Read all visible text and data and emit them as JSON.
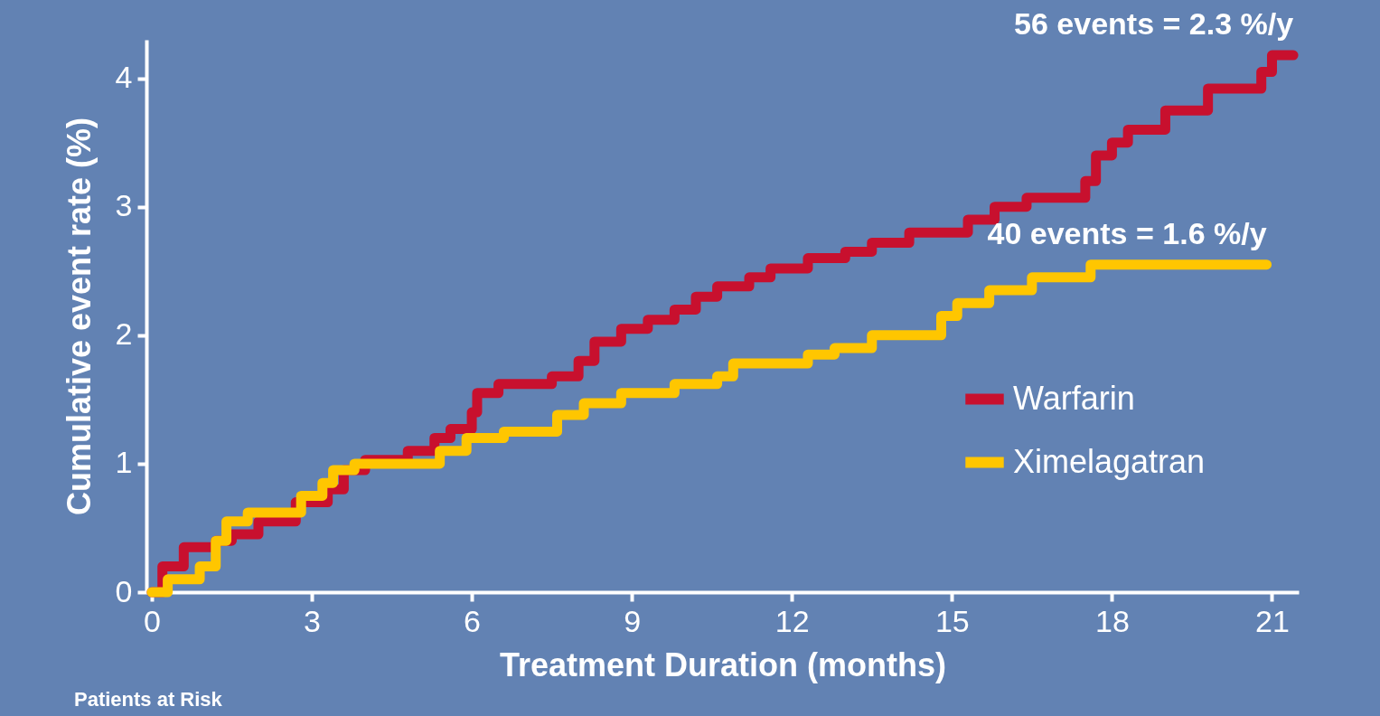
{
  "chart_data": {
    "type": "step",
    "xlabel": "Treatment Duration (months)",
    "ylabel": "Cumulative event rate (%)",
    "xlim": [
      -0.1,
      21.5
    ],
    "xticks": [
      0,
      3,
      6,
      9,
      12,
      15,
      18,
      21
    ],
    "ylim": [
      0,
      4.3
    ],
    "yticks": [
      0,
      1,
      2,
      3,
      4
    ],
    "grid": false,
    "legend": "right",
    "line_style": "solid",
    "marker": "none",
    "series": [
      {
        "name": "Warfarin",
        "color": "#c8102e",
        "x": [
          0,
          0.2,
          0.6,
          1.2,
          1.5,
          2.0,
          2.7,
          3.3,
          3.6,
          4.0,
          4.8,
          5.3,
          5.6,
          6.0,
          6.1,
          6.5,
          7.5,
          8.0,
          8.3,
          8.8,
          9.3,
          9.8,
          10.2,
          10.6,
          11.2,
          11.6,
          12.3,
          13.0,
          13.5,
          14.2,
          15.3,
          15.8,
          16.4,
          17.5,
          17.7,
          18.0,
          18.3,
          19.0,
          19.8,
          20.8,
          21.0,
          21.4
        ],
        "values": [
          0,
          0.2,
          0.35,
          0.4,
          0.45,
          0.55,
          0.7,
          0.8,
          0.95,
          1.03,
          1.1,
          1.2,
          1.27,
          1.4,
          1.55,
          1.62,
          1.68,
          1.8,
          1.95,
          2.05,
          2.12,
          2.2,
          2.3,
          2.38,
          2.45,
          2.52,
          2.6,
          2.65,
          2.72,
          2.8,
          2.9,
          3.0,
          3.07,
          3.2,
          3.4,
          3.5,
          3.6,
          3.75,
          3.92,
          4.05,
          4.18,
          4.18
        ]
      },
      {
        "name": "Ximelagatran",
        "color": "#ffc600",
        "x": [
          0,
          0.3,
          0.9,
          1.2,
          1.4,
          1.8,
          2.8,
          3.2,
          3.4,
          3.8,
          5.4,
          5.9,
          6.6,
          7.6,
          8.1,
          8.8,
          9.8,
          10.6,
          10.9,
          12.3,
          12.8,
          13.5,
          14.8,
          15.1,
          15.7,
          16.5,
          17.6,
          20.9
        ],
        "values": [
          0,
          0.1,
          0.2,
          0.4,
          0.55,
          0.62,
          0.75,
          0.85,
          0.95,
          1.0,
          1.1,
          1.2,
          1.25,
          1.38,
          1.47,
          1.55,
          1.62,
          1.68,
          1.78,
          1.85,
          1.9,
          2.0,
          2.15,
          2.25,
          2.35,
          2.45,
          2.55,
          2.55
        ]
      }
    ],
    "annotations": [
      {
        "text": "56 events = 2.3 %/y",
        "x": 21.4,
        "y": 4.18
      },
      {
        "text": "40 events = 1.6 %/y",
        "x": 20.9,
        "y": 2.55
      },
      "Patients at Risk"
    ]
  }
}
